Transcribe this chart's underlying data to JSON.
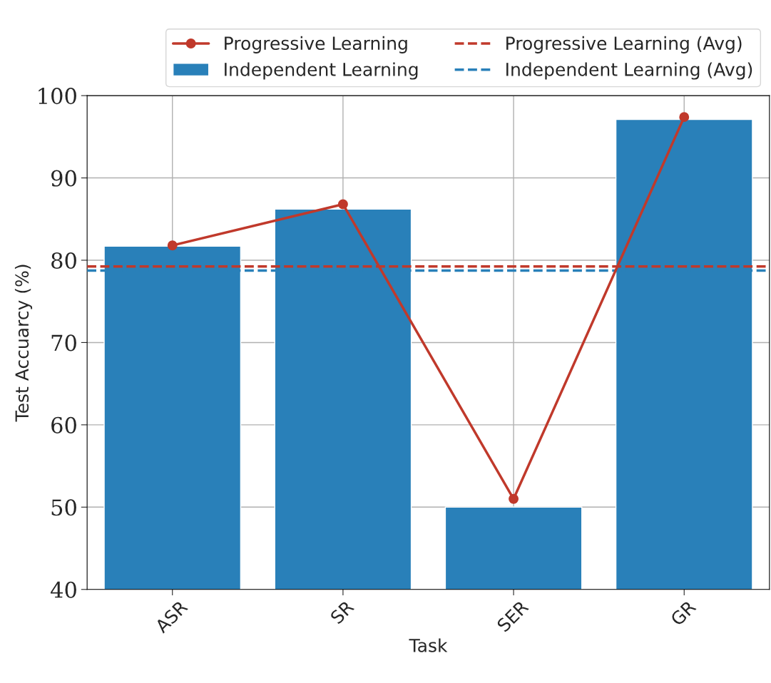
{
  "chart_data": {
    "type": "bar",
    "xlabel": "Task",
    "ylabel": "Test Accuarcy (%)",
    "categories": [
      "ASR",
      "SR",
      "SER",
      "GR"
    ],
    "series": [
      {
        "name": "Progressive Learning",
        "type": "line",
        "color": "#c0392b",
        "marker": "circle",
        "line_style": "solid",
        "values": [
          81.8,
          86.8,
          51.0,
          97.4
        ]
      },
      {
        "name": "Independent Learning",
        "color": "#2980b9",
        "values": [
          81.7,
          86.2,
          50.0,
          97.1
        ]
      }
    ],
    "ref_lines": [
      {
        "axis": "y",
        "value": 79.25,
        "label": "Progressive Learning (Avg)",
        "color": "#c0392b",
        "line_style": "dashed"
      },
      {
        "axis": "y",
        "value": 78.75,
        "label": "Independent Learning (Avg)",
        "color": "#2980b9",
        "line_style": "dashed"
      }
    ],
    "ylim": [
      40,
      100
    ],
    "yticks": [
      40,
      50,
      60,
      70,
      80,
      90,
      100
    ],
    "grid": true,
    "legend": "top right"
  }
}
